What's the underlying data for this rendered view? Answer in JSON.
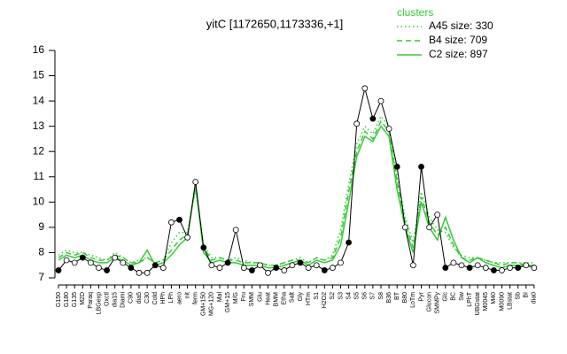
{
  "chart_data": {
    "type": "line",
    "title": "yitC [1172650,1173336,+1]",
    "legend_title": "clusters",
    "ylim": [
      7,
      16
    ],
    "yticks": [
      7,
      8,
      9,
      10,
      11,
      12,
      13,
      14,
      15,
      16
    ],
    "color": "#000000",
    "categories": [
      "G150",
      "G180",
      "G135",
      "M2D",
      "Paraq",
      "LBGexp",
      "Oxctl",
      "dia15",
      "Diami",
      "C90",
      "dia5",
      "C30",
      "Cold",
      "HPh",
      "LPh",
      "aero",
      "nit",
      "ferm",
      "GM+150",
      "MG+120",
      "Mal",
      "GM+15",
      "M/G",
      "Fru",
      "SMM",
      "Glu",
      "Heat",
      "BMM",
      "Etha",
      "Salt",
      "Gly",
      "HTm",
      "S1",
      "H2O2",
      "S2",
      "S3",
      "S4",
      "S5",
      "S6",
      "S7",
      "S8",
      "B36",
      "BT",
      "B80",
      "LoTm",
      "Pyr",
      "Glucon",
      "SMMPy",
      "Glc",
      "BC",
      "Sw",
      "LPhT",
      "UBGstat",
      "M0045",
      "M40",
      "M0090",
      "LBstat",
      "Sb",
      "BI",
      "dia0"
    ],
    "values": [
      7.3,
      7.7,
      7.6,
      7.8,
      7.6,
      7.4,
      7.3,
      7.8,
      7.6,
      7.4,
      7.2,
      7.2,
      7.5,
      7.4,
      9.2,
      9.3,
      8.6,
      10.8,
      8.2,
      7.5,
      7.4,
      7.6,
      8.9,
      7.4,
      7.3,
      7.5,
      7.2,
      7.4,
      7.3,
      7.5,
      7.6,
      7.4,
      7.5,
      7.3,
      7.4,
      7.6,
      8.4,
      13.1,
      14.5,
      13.3,
      14.0,
      12.9,
      11.4,
      9.0,
      7.5,
      11.4,
      9.0,
      9.5,
      7.4,
      7.6,
      7.5,
      7.4,
      7.5,
      7.4,
      7.3,
      7.3,
      7.4,
      7.4,
      7.5,
      7.4
    ],
    "series": [
      {
        "name": "A45 size: 330",
        "color": "#33cc33",
        "style": "dotted",
        "values": [
          7.9,
          8.1,
          8.0,
          8.0,
          7.9,
          7.8,
          7.7,
          8.0,
          7.8,
          7.6,
          7.7,
          7.8,
          7.6,
          7.7,
          8.4,
          8.8,
          8.8,
          10.5,
          8.3,
          7.8,
          7.8,
          7.7,
          7.8,
          7.7,
          7.6,
          7.6,
          7.5,
          7.5,
          7.6,
          7.7,
          7.8,
          7.6,
          7.8,
          7.7,
          7.9,
          8.9,
          10.7,
          12.3,
          13.0,
          12.7,
          13.4,
          13.0,
          11.0,
          9.4,
          8.4,
          10.4,
          9.4,
          8.9,
          8.8,
          8.2,
          7.9,
          7.8,
          7.8,
          7.7,
          7.6,
          7.6,
          7.6,
          7.6,
          7.6,
          7.6
        ]
      },
      {
        "name": "B4 size: 709",
        "color": "#33cc33",
        "style": "dashed",
        "values": [
          7.8,
          8.0,
          7.9,
          8.0,
          7.8,
          7.7,
          7.7,
          7.9,
          7.8,
          7.6,
          7.6,
          7.8,
          7.6,
          7.7,
          8.1,
          8.5,
          8.7,
          10.6,
          8.2,
          7.7,
          7.8,
          7.7,
          7.7,
          7.6,
          7.6,
          7.6,
          7.5,
          7.5,
          7.6,
          7.7,
          7.7,
          7.6,
          7.8,
          7.7,
          7.8,
          8.6,
          10.4,
          12.0,
          12.8,
          12.5,
          13.2,
          12.8,
          10.8,
          9.2,
          8.2,
          10.2,
          9.2,
          8.7,
          9.0,
          8.3,
          7.8,
          7.7,
          7.8,
          7.7,
          7.6,
          7.5,
          7.6,
          7.6,
          7.5,
          7.5
        ]
      },
      {
        "name": "C2 size: 897",
        "color": "#33cc33",
        "style": "solid",
        "values": [
          7.7,
          7.9,
          7.8,
          7.9,
          7.7,
          7.6,
          7.6,
          7.8,
          7.7,
          7.5,
          7.6,
          8.1,
          7.5,
          7.6,
          7.9,
          8.3,
          8.6,
          10.7,
          8.0,
          7.6,
          7.7,
          7.6,
          7.6,
          7.5,
          7.5,
          7.5,
          7.4,
          7.4,
          7.5,
          7.6,
          7.7,
          7.5,
          7.7,
          7.6,
          7.7,
          8.3,
          10.0,
          11.8,
          12.6,
          12.4,
          13.0,
          12.6,
          10.5,
          9.0,
          8.0,
          10.0,
          9.0,
          8.5,
          9.4,
          8.5,
          7.8,
          7.6,
          7.8,
          7.6,
          7.5,
          7.4,
          7.5,
          7.5,
          7.5,
          7.5
        ]
      }
    ]
  }
}
